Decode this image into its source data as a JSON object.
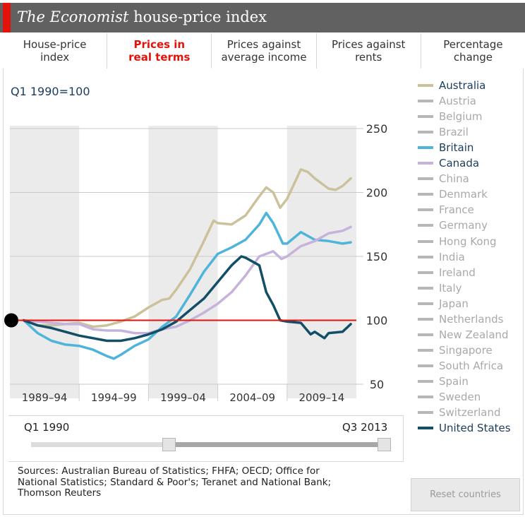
{
  "header": {
    "title_italic": "The Economist",
    "title_rest": " house-price index",
    "accent_color": "#e3120b",
    "bar_color": "#616161"
  },
  "tabs": [
    {
      "label": "House-price\nindex",
      "active": false
    },
    {
      "label": "Prices in\nreal terms",
      "active": true
    },
    {
      "label": "Prices against\naverage income",
      "active": false
    },
    {
      "label": "Prices against\nrents",
      "active": false
    },
    {
      "label": "Percentage\nchange",
      "active": false
    }
  ],
  "chart": {
    "basis_label": "Q1 1990=100"
  },
  "legend": [
    {
      "name": "Australia",
      "color": "#cbc29b",
      "text_color": "#1a3c5e",
      "selected": true
    },
    {
      "name": "Austria",
      "color": "#b7b7b7",
      "text_color": "#a9a9a9",
      "selected": false
    },
    {
      "name": "Belgium",
      "color": "#b7b7b7",
      "text_color": "#a9a9a9",
      "selected": false
    },
    {
      "name": "Brazil",
      "color": "#b7b7b7",
      "text_color": "#a9a9a9",
      "selected": false
    },
    {
      "name": "Britain",
      "color": "#4eb4da",
      "text_color": "#1a3c5e",
      "selected": true
    },
    {
      "name": "Canada",
      "color": "#c6b3dc",
      "text_color": "#1a3c5e",
      "selected": true
    },
    {
      "name": "China",
      "color": "#b7b7b7",
      "text_color": "#a9a9a9",
      "selected": false
    },
    {
      "name": "Denmark",
      "color": "#b7b7b7",
      "text_color": "#a9a9a9",
      "selected": false
    },
    {
      "name": "France",
      "color": "#b7b7b7",
      "text_color": "#a9a9a9",
      "selected": false
    },
    {
      "name": "Germany",
      "color": "#b7b7b7",
      "text_color": "#a9a9a9",
      "selected": false
    },
    {
      "name": "Hong Kong",
      "color": "#b7b7b7",
      "text_color": "#a9a9a9",
      "selected": false
    },
    {
      "name": "India",
      "color": "#b7b7b7",
      "text_color": "#a9a9a9",
      "selected": false
    },
    {
      "name": "Ireland",
      "color": "#b7b7b7",
      "text_color": "#a9a9a9",
      "selected": false
    },
    {
      "name": "Italy",
      "color": "#b7b7b7",
      "text_color": "#a9a9a9",
      "selected": false
    },
    {
      "name": "Japan",
      "color": "#b7b7b7",
      "text_color": "#a9a9a9",
      "selected": false
    },
    {
      "name": "Netherlands",
      "color": "#b7b7b7",
      "text_color": "#a9a9a9",
      "selected": false
    },
    {
      "name": "New Zealand",
      "color": "#b7b7b7",
      "text_color": "#a9a9a9",
      "selected": false
    },
    {
      "name": "Singapore",
      "color": "#b7b7b7",
      "text_color": "#a9a9a9",
      "selected": false
    },
    {
      "name": "South Africa",
      "color": "#b7b7b7",
      "text_color": "#a9a9a9",
      "selected": false
    },
    {
      "name": "Spain",
      "color": "#b7b7b7",
      "text_color": "#a9a9a9",
      "selected": false
    },
    {
      "name": "Sweden",
      "color": "#b7b7b7",
      "text_color": "#a9a9a9",
      "selected": false
    },
    {
      "name": "Switzerland",
      "color": "#b7b7b7",
      "text_color": "#a9a9a9",
      "selected": false
    },
    {
      "name": "United States",
      "color": "#124e66",
      "text_color": "#1a3c5e",
      "selected": true
    }
  ],
  "slider": {
    "start_label": "Q1 1990",
    "end_label": "Q3 2013",
    "start_fraction": 0.0,
    "end_fraction": 1.0
  },
  "sources": "Sources: Australian Bureau of Statistics; FHFA; OECD; Office for\nNational Statistics; Standard & Poor's; Teranet and National Bank;\nThomson Reuters",
  "reset_button": "Reset countries",
  "chart_data": {
    "type": "line",
    "title": "The Economist house-price index",
    "subtitle": "Q1 1990=100",
    "ylim": [
      50,
      250
    ],
    "yticks": [
      50,
      100,
      150,
      200,
      250
    ],
    "xlim": [
      1989,
      2014
    ],
    "x_bands": [
      {
        "label": "1989–94",
        "from": 1989,
        "to": 1994,
        "shaded": true
      },
      {
        "label": "1994–99",
        "from": 1994,
        "to": 1999,
        "shaded": false
      },
      {
        "label": "1999–04",
        "from": 1999,
        "to": 2004,
        "shaded": true
      },
      {
        "label": "2004–09",
        "from": 2004,
        "to": 2009,
        "shaded": false
      },
      {
        "label": "2009–14",
        "from": 2009,
        "to": 2014,
        "shaded": true
      }
    ],
    "reference_line": {
      "value": 100,
      "color": "#e3120b"
    },
    "start_marker": {
      "x": 1990,
      "y": 100
    },
    "grid": true,
    "series": [
      {
        "name": "Australia",
        "color": "#cbc29b",
        "points": [
          [
            1990,
            100
          ],
          [
            1991,
            96
          ],
          [
            1992,
            96
          ],
          [
            1993,
            97
          ],
          [
            1994,
            98
          ],
          [
            1995,
            95
          ],
          [
            1996,
            96
          ],
          [
            1997,
            99
          ],
          [
            1998,
            103
          ],
          [
            1999,
            110
          ],
          [
            2000,
            116
          ],
          [
            2000.5,
            117
          ],
          [
            2001,
            124
          ],
          [
            2002,
            140
          ],
          [
            2003,
            162
          ],
          [
            2003.7,
            178
          ],
          [
            2004,
            176
          ],
          [
            2005,
            175
          ],
          [
            2006,
            182
          ],
          [
            2007,
            197
          ],
          [
            2007.5,
            204
          ],
          [
            2008,
            200
          ],
          [
            2008.5,
            188
          ],
          [
            2009,
            195
          ],
          [
            2010,
            218
          ],
          [
            2010.5,
            216
          ],
          [
            2011,
            211
          ],
          [
            2012,
            203
          ],
          [
            2012.5,
            202
          ],
          [
            2013,
            205
          ],
          [
            2013.6,
            211
          ]
        ]
      },
      {
        "name": "Britain",
        "color": "#4eb4da",
        "points": [
          [
            1990,
            100
          ],
          [
            1991,
            90
          ],
          [
            1992,
            84
          ],
          [
            1993,
            81
          ],
          [
            1994,
            80
          ],
          [
            1995,
            77
          ],
          [
            1996,
            72
          ],
          [
            1996.5,
            70
          ],
          [
            1997,
            73
          ],
          [
            1998,
            80
          ],
          [
            1999,
            85
          ],
          [
            2000,
            95
          ],
          [
            2001,
            103
          ],
          [
            2002,
            120
          ],
          [
            2003,
            138
          ],
          [
            2004,
            152
          ],
          [
            2005,
            157
          ],
          [
            2006,
            163
          ],
          [
            2007,
            175
          ],
          [
            2007.5,
            184
          ],
          [
            2008,
            176
          ],
          [
            2008.7,
            160
          ],
          [
            2009,
            160
          ],
          [
            2010,
            169
          ],
          [
            2011,
            163
          ],
          [
            2012,
            162
          ],
          [
            2013,
            160
          ],
          [
            2013.6,
            161
          ]
        ]
      },
      {
        "name": "Canada",
        "color": "#c6b3dc",
        "points": [
          [
            1990,
            100
          ],
          [
            1991,
            99
          ],
          [
            1992,
            98
          ],
          [
            1993,
            97
          ],
          [
            1994,
            97
          ],
          [
            1995,
            93
          ],
          [
            1996,
            92
          ],
          [
            1997,
            92
          ],
          [
            1998,
            90
          ],
          [
            1999,
            90
          ],
          [
            2000,
            93
          ],
          [
            2001,
            95
          ],
          [
            2002,
            100
          ],
          [
            2003,
            106
          ],
          [
            2004,
            113
          ],
          [
            2005,
            122
          ],
          [
            2006,
            135
          ],
          [
            2007,
            150
          ],
          [
            2008,
            154
          ],
          [
            2008.6,
            148
          ],
          [
            2009,
            150
          ],
          [
            2010,
            158
          ],
          [
            2011,
            162
          ],
          [
            2012,
            168
          ],
          [
            2013,
            170
          ],
          [
            2013.6,
            173
          ]
        ]
      },
      {
        "name": "United States",
        "color": "#124e66",
        "points": [
          [
            1990,
            100
          ],
          [
            1991,
            96
          ],
          [
            1992,
            94
          ],
          [
            1993,
            91
          ],
          [
            1994,
            88
          ],
          [
            1995,
            86
          ],
          [
            1996,
            84
          ],
          [
            1997,
            84
          ],
          [
            1998,
            86
          ],
          [
            1999,
            89
          ],
          [
            2000,
            93
          ],
          [
            2001,
            99
          ],
          [
            2002,
            108
          ],
          [
            2003,
            117
          ],
          [
            2004,
            130
          ],
          [
            2005,
            143
          ],
          [
            2005.7,
            150
          ],
          [
            2006,
            149
          ],
          [
            2007,
            143
          ],
          [
            2007.5,
            122
          ],
          [
            2008,
            112
          ],
          [
            2008.5,
            100
          ],
          [
            2009,
            99
          ],
          [
            2010,
            98
          ],
          [
            2010.7,
            89
          ],
          [
            2011,
            91
          ],
          [
            2011.7,
            86
          ],
          [
            2012,
            90
          ],
          [
            2013,
            91
          ],
          [
            2013.6,
            97
          ]
        ]
      }
    ]
  }
}
